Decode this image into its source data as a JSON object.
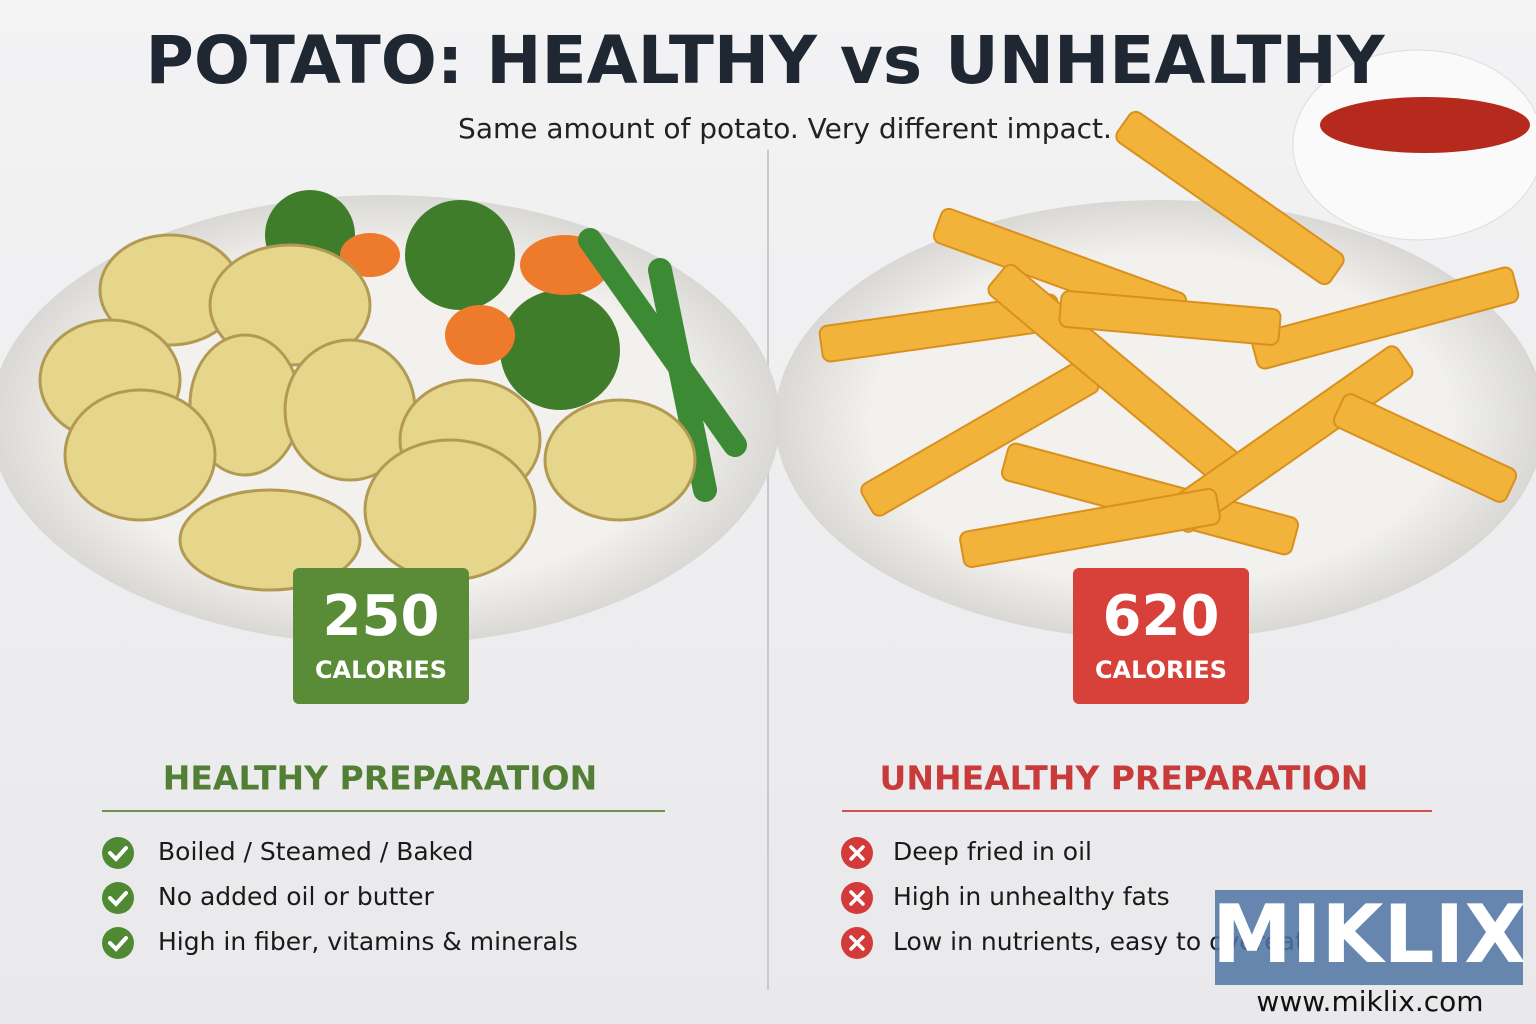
{
  "header": {
    "title": "POTATO: HEALTHY vs UNHEALTHY",
    "subtitle": "Same amount of potato. Very different impact."
  },
  "healthy": {
    "calories": 250,
    "unit": "CALORIES",
    "heading": "HEALTHY PREPARATION",
    "items": [
      "Boiled / Steamed / Baked",
      "No added oil or butter",
      "High in fiber, vitamins & minerals"
    ]
  },
  "unhealthy": {
    "calories": 620,
    "unit": "CALORIES",
    "heading": "UNHEALTHY PREPARATION",
    "items": [
      "Deep fried in oil",
      "High in unhealthy fats",
      "Low in nutrients, easy to overeat"
    ]
  },
  "watermark": {
    "brand": "MIKLIX",
    "url": "www.miklix.com"
  }
}
